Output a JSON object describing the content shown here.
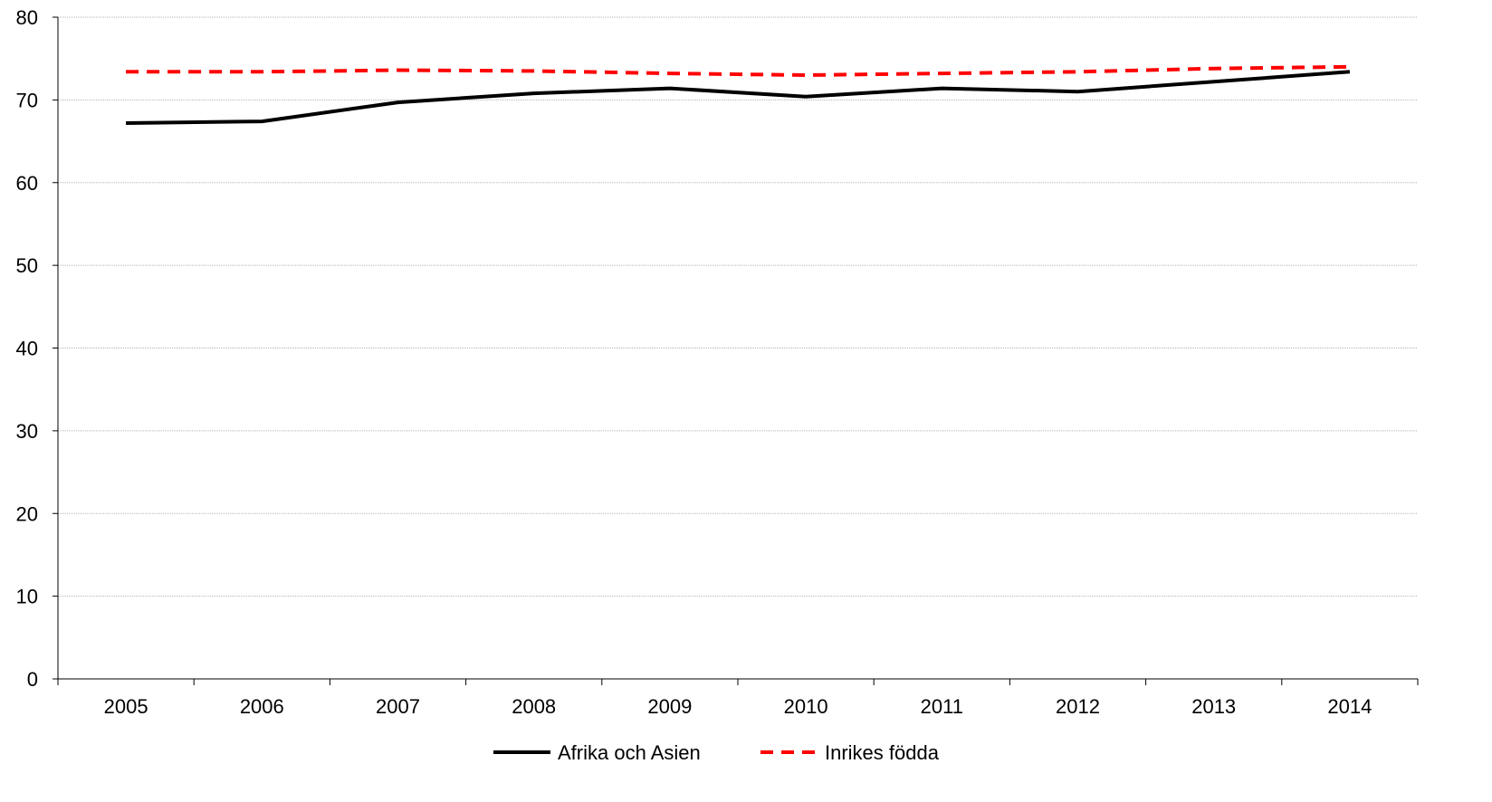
{
  "chart_data": {
    "type": "line",
    "categories": [
      "2005",
      "2006",
      "2007",
      "2008",
      "2009",
      "2010",
      "2011",
      "2012",
      "2013",
      "2014"
    ],
    "series": [
      {
        "name": "Afrika och Asien",
        "values": [
          67.2,
          67.4,
          69.7,
          70.8,
          71.4,
          70.4,
          71.4,
          71.0,
          72.2,
          73.4
        ],
        "color": "#000000",
        "style": "solid"
      },
      {
        "name": "Inrikes födda",
        "values": [
          73.4,
          73.4,
          73.6,
          73.5,
          73.2,
          73.0,
          73.2,
          73.4,
          73.8,
          74.0
        ],
        "color": "#ff0000",
        "style": "dashed"
      }
    ],
    "ylim": [
      0,
      80
    ],
    "yticks": [
      "0",
      "10",
      "20",
      "30",
      "40",
      "50",
      "60",
      "70",
      "80"
    ],
    "grid": true,
    "legend": "bottom",
    "title": "",
    "xlabel": "",
    "ylabel": ""
  }
}
